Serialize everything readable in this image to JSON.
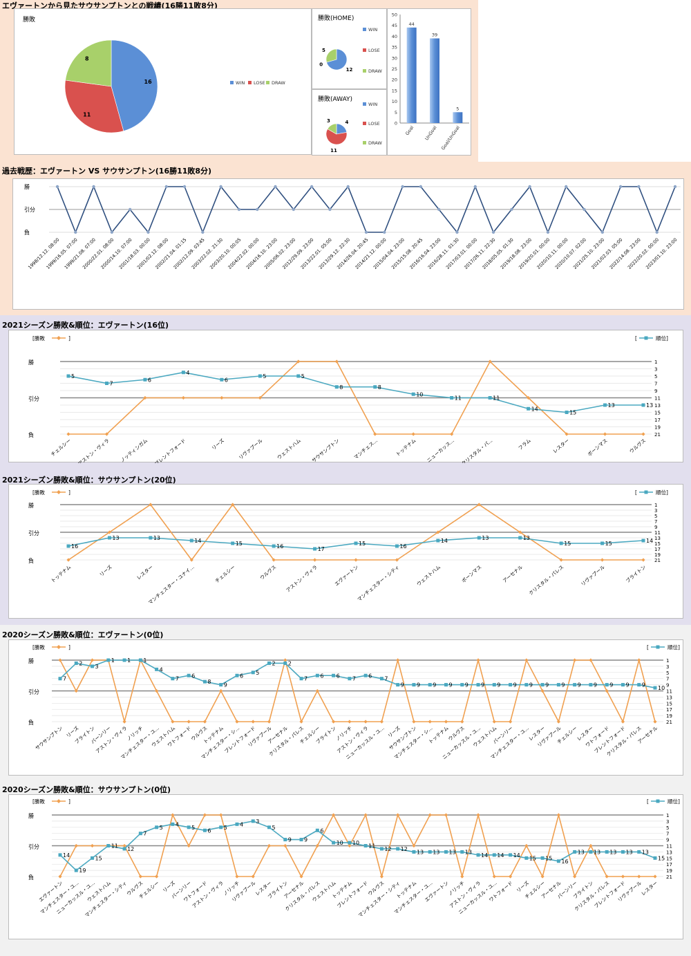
{
  "section1": {
    "title": "エヴァートンから見たサウサンプトンとの戦績(16勝11敗8分)",
    "legend": [
      "WIN",
      "LOSE",
      "DRAW"
    ],
    "colors": {
      "win": "#5b8fd6",
      "lose": "#d9514e",
      "draw": "#a8d06a"
    },
    "charts": [
      {
        "type": "pie",
        "title": "勝敗",
        "labels": [
          "WIN",
          "LOSE",
          "DRAW"
        ],
        "values": [
          16,
          11,
          8
        ]
      },
      {
        "type": "pie",
        "title": "勝敗(HOME)",
        "labels": [
          "WIN",
          "LOSE",
          "DRAW"
        ],
        "values": [
          12,
          0,
          5
        ]
      },
      {
        "type": "pie",
        "title": "勝敗(AWAY)",
        "labels": [
          "WIN",
          "LOSE",
          "DRAW"
        ],
        "values": [
          4,
          11,
          3
        ]
      },
      {
        "type": "bar",
        "categories": [
          "Goal",
          "UnGoal",
          "Goal/UnGoal"
        ],
        "values": [
          44,
          39,
          5
        ],
        "ylim": [
          0,
          50
        ],
        "yticks": [
          "0",
          "5",
          "10",
          "15",
          "20",
          "25",
          "30",
          "35",
          "40",
          "45",
          "50"
        ]
      }
    ]
  },
  "section2": {
    "title": "過去戦歴：エヴァートン VS サウサンプトン(16勝11敗8分)",
    "ylabels": [
      "勝",
      "引分",
      "負"
    ],
    "chart_data": {
      "type": "line",
      "x": [
        "1998/12.12. 08:00",
        "1999/16.05. 07:00",
        "1999/21.08. 07:00",
        "2000/22.01. 08:00",
        "2000/14.10. 07:00",
        "2001/18.03. 00:00",
        "2001/02.12. 08:00",
        "2002/21.04. 01:15",
        "2002/12.09. 03:45",
        "2003/22.02. 21:30",
        "2003/20.10. 00:05",
        "2004/22.02. 00:00",
        "2004/16.10. 23:00",
        "2005/06.02. 23:00",
        "2012/29.09. 23:00",
        "2013/22.01. 05:00",
        "2013/29.12. 22:30",
        "2014/26.04. 20:45",
        "2014/21.12. 00:00",
        "2015/04.04. 23:00",
        "2015/15.08. 20:45",
        "2016/16.04. 23:00",
        "2016/28.11. 01:30",
        "2017/03.01. 00:00",
        "2017/26.11. 22:30",
        "2018/05.05. 01:30",
        "2019/18.08. 23:00",
        "2019/20.01. 00:00",
        "2020/10.11. 00:00",
        "2020/10.07. 02:00",
        "2021/25.10. 23:00",
        "2021/02.03. 05:00",
        "2022/14.08. 23:00",
        "2022/20.02. 00:00",
        "2023/01.10. 23:00"
      ],
      "results": [
        1,
        -1,
        1,
        -1,
        0,
        -1,
        1,
        1,
        -1,
        1,
        0,
        0,
        1,
        0,
        1,
        0,
        1,
        -1,
        -1,
        1,
        1,
        0,
        -1,
        1,
        -1,
        0,
        1,
        -1,
        1,
        0,
        -1,
        1,
        1,
        -1,
        1
      ]
    }
  },
  "ev2021": {
    "title": "2021シーズン勝敗&順位：エヴァートン(16位)",
    "legend_left": "[勝敗",
    "legend_right": "[",
    "legend_right2": "順位]",
    "bracket_close": "]",
    "ylabels": [
      "勝",
      "引分",
      "負"
    ],
    "rank_ticks": [
      "1",
      "3",
      "5",
      "7",
      "9",
      "11",
      "13",
      "15",
      "17",
      "19",
      "21"
    ],
    "chart_data": {
      "type": "line",
      "categories": [
        "チェルシー",
        "アストン・ヴィラ",
        "ノッティンガム",
        "ブレントフォード",
        "リーズ",
        "リヴァプール",
        "ウェストハム",
        "サウサンプトン",
        "マンチェス...",
        "トッテナム",
        "ニューカッス...",
        "クリスタル・パ...",
        "フラム",
        "レスター",
        "ボーンマス",
        "ウルヴス"
      ],
      "results": [
        -1,
        -1,
        0,
        0,
        0,
        0,
        1,
        1,
        -1,
        -1,
        -1,
        1,
        0,
        -1,
        -1,
        -1
      ],
      "ranks": [
        5,
        7,
        6,
        4,
        6,
        5,
        5,
        8,
        8,
        10,
        11,
        11,
        14,
        15,
        13,
        13
      ]
    }
  },
  "so2021": {
    "title": "2021シーズン勝敗&順位：サウサンプトン(20位)",
    "legend_left": "[勝敗",
    "legend_right": "[",
    "legend_right2": "順位]",
    "bracket_close": "]",
    "ylabels": [
      "勝",
      "引分",
      "負"
    ],
    "rank_ticks": [
      "1",
      "3",
      "5",
      "7",
      "9",
      "11",
      "13",
      "15",
      "17",
      "19",
      "21"
    ],
    "chart_data": {
      "type": "line",
      "categories": [
        "トッテナム",
        "リーズ",
        "レスター",
        "マンチェスター・ユナイ...",
        "チェルシー",
        "ウルヴス",
        "アストン・ヴィラ",
        "エヴァートン",
        "マンチェスター・シティ",
        "ウェストハム",
        "ボーンマス",
        "アーセナル",
        "クリスタル・パレス",
        "リヴァプール",
        "ブライトン"
      ],
      "results": [
        -1,
        0,
        1,
        -1,
        1,
        -1,
        -1,
        -1,
        -1,
        0,
        1,
        0,
        -1,
        -1,
        -1
      ],
      "ranks": [
        16,
        13,
        13,
        14,
        15,
        16,
        17,
        15,
        16,
        14,
        13,
        13,
        15,
        15,
        14
      ]
    }
  },
  "ev2020": {
    "title": "2020シーズン勝敗&順位：エヴァートン(0位)",
    "legend_left": "[勝敗",
    "legend_right": "[",
    "legend_right2": "順位]",
    "bracket_close": "]",
    "ylabels": [
      "勝",
      "引分",
      "負"
    ],
    "rank_ticks": [
      "1",
      "3",
      "5",
      "7",
      "9",
      "11",
      "13",
      "15",
      "17",
      "19",
      "21"
    ],
    "chart_data": {
      "type": "line",
      "categories": [
        "サウサンプトン",
        "リーズ",
        "ブライトン",
        "バーンリー",
        "アストン・ヴィラ",
        "ノリッチ",
        "マンチェスター・ユ...",
        "ウェストハム",
        "ワトフォード",
        "ウルヴス",
        "トッテナム",
        "マンチェスター・シ...",
        "ブレントフォード",
        "リヴァプール",
        "アーセナル",
        "クリスタル・パレス",
        "チェルシー",
        "ブライトン",
        "ノリッチ",
        "アストン・ヴィラ",
        "ニューカッスル・ユ...",
        "リーズ",
        "サウサンプトン",
        "マンチェスター・シ...",
        "トッテナム",
        "ウルヴス",
        "ニューカッスル・ユ...",
        "ウェストハム",
        "バーンリー",
        "マンチェスター・ユ...",
        "レスター",
        "リヴァプール",
        "チェルシー",
        "レスター",
        "ワトフォード",
        "ブレントフォード",
        "クリスタル・パレス",
        "アーセナル"
      ],
      "results": [
        1,
        0,
        1,
        1,
        -1,
        1,
        0,
        -1,
        -1,
        -1,
        0,
        -1,
        -1,
        -1,
        1,
        -1,
        0,
        -1,
        -1,
        -1,
        -1,
        1,
        -1,
        -1,
        -1,
        -1,
        1,
        -1,
        -1,
        1,
        0,
        -1,
        1,
        1,
        0,
        -1,
        1,
        -1
      ],
      "ranks": [
        7,
        2,
        3,
        1,
        1,
        1,
        4,
        7,
        6,
        8,
        9,
        6,
        5,
        2,
        2,
        7,
        6,
        6,
        7,
        6,
        7,
        9,
        9,
        9,
        9,
        9,
        9,
        9,
        9,
        9,
        9,
        9,
        9,
        9,
        9,
        9,
        9,
        10
      ]
    }
  },
  "so2020": {
    "title": "2020シーズン勝敗&順位：サウサンプトン(0位)",
    "legend_left": "[勝敗",
    "legend_right": "[",
    "legend_right2": "順位]",
    "bracket_close": "]",
    "ylabels": [
      "勝",
      "引分",
      "負"
    ],
    "rank_ticks": [
      "1",
      "3",
      "5",
      "7",
      "9",
      "11",
      "13",
      "15",
      "17",
      "19",
      "21"
    ],
    "chart_data": {
      "type": "line",
      "categories": [
        "エヴァートン",
        "マンチェスター・ユ...",
        "ニューカッスル・ユ...",
        "ウェストハム",
        "マンチェスター・シティ",
        "ウルヴス",
        "チェルシー",
        "リーズ",
        "バーンリー",
        "ワトフォード",
        "アストン・ヴィラ",
        "ノリッチ",
        "リヴァプール",
        "レスター",
        "ブライトン",
        "アーセナル",
        "クリスタル・パレス",
        "ウェストハム",
        "トッテナム",
        "ブレントフォード",
        "ウルヴス",
        "マンチェスター・シティ",
        "トッテナム",
        "マンチェスター・ユ...",
        "エヴァートン",
        "ノリッチ",
        "アストン・ヴィラ",
        "ニューカッスル・ユ...",
        "ワトフォード",
        "リーズ",
        "チェルシー",
        "アーセナル",
        "バーンリー",
        "ブライトン",
        "クリスタル・パレス",
        "ブレントフォード",
        "リヴァプール",
        "レスター"
      ],
      "results": [
        -1,
        0,
        0,
        0,
        0,
        -1,
        -1,
        1,
        0,
        1,
        1,
        -1,
        -1,
        0,
        0,
        -1,
        0,
        1,
        0,
        1,
        -1,
        1,
        0,
        1,
        1,
        -1,
        1,
        -1,
        -1,
        0,
        -1,
        1,
        -1,
        0,
        -1,
        -1,
        -1,
        -1
      ],
      "ranks": [
        14,
        19,
        15,
        11,
        12,
        7,
        5,
        4,
        5,
        6,
        5,
        4,
        3,
        5,
        9,
        9,
        6,
        10,
        10,
        11,
        12,
        12,
        13,
        13,
        13,
        13,
        14,
        14,
        14,
        15,
        15,
        16,
        13,
        13,
        13,
        13,
        13,
        15
      ]
    }
  }
}
